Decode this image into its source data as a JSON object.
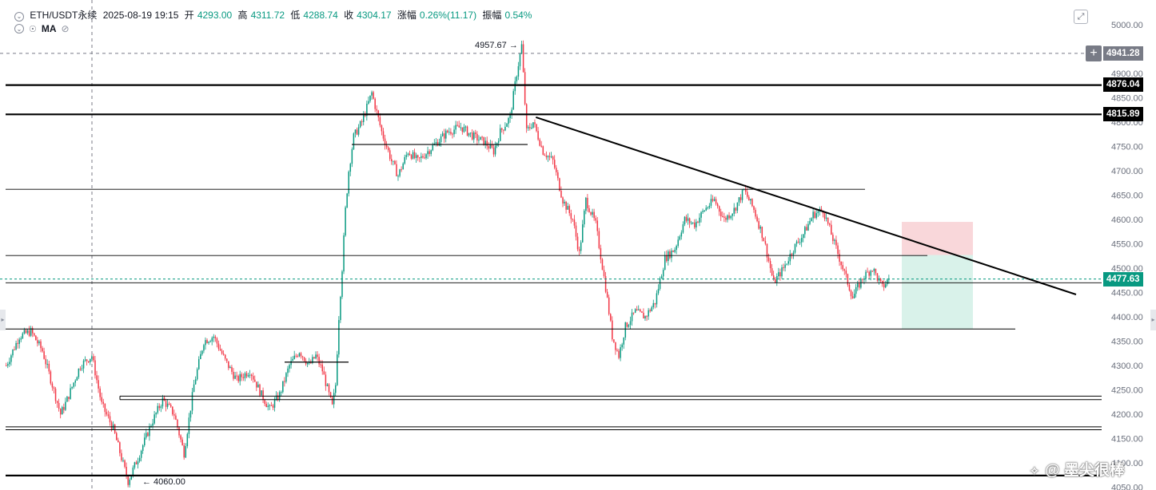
{
  "header": {
    "symbol": "ETH/USDT永续",
    "datetime": "2025-08-19 19:15",
    "open_label": "开",
    "open": "4293.00",
    "high_label": "高",
    "high": "4311.72",
    "low_label": "低",
    "low": "4288.74",
    "close_label": "收",
    "close": "4304.17",
    "change_label": "涨幅",
    "change": "0.26%(11.17)",
    "amp_label": "振幅",
    "amp": "0.54%",
    "indicator": "MA"
  },
  "icons": {
    "collapse": "chevron-down-icon",
    "alert": "bell-icon",
    "visibility": "eye-off-icon",
    "expand": "expand-icon",
    "add": "plus-icon",
    "watermark": "logo-icon"
  },
  "colors": {
    "up": "#089981",
    "down": "#f23645",
    "level": "#000000",
    "current": "#089981",
    "crosshair": "#787b86",
    "stop_zone": "#f9d7da",
    "target_zone": "#d9f2ea"
  },
  "price_badges": {
    "crosshair": "4941.28",
    "level_high": "4876.04",
    "level_mid": "4815.89",
    "current": "4477.63"
  },
  "annotations": {
    "high_label": "4957.67 →",
    "low_label": "← 4060.00"
  },
  "watermark": "墨尖很棒",
  "chart_data": {
    "type": "candlestick",
    "symbol": "ETH/USDT永续",
    "interval_minutes": 15,
    "y_axis": {
      "ticks": [
        "5000.00",
        "4950.00",
        "4900.00",
        "4850.00",
        "4800.00",
        "4750.00",
        "4700.00",
        "4650.00",
        "4600.00",
        "4550.00",
        "4500.00",
        "4450.00",
        "4400.00",
        "4350.00",
        "4300.00",
        "4250.00",
        "4200.00",
        "4150.00",
        "4100.00",
        "4050.00"
      ],
      "ylim": [
        4047,
        5005
      ]
    },
    "x_axis": {
      "n_bars": 440
    },
    "price_path": [
      [
        0,
        4300
      ],
      [
        8,
        4360
      ],
      [
        15,
        4370
      ],
      [
        22,
        4330
      ],
      [
        28,
        4260
      ],
      [
        33,
        4200
      ],
      [
        37,
        4230
      ],
      [
        45,
        4300
      ],
      [
        52,
        4320
      ],
      [
        58,
        4220
      ],
      [
        65,
        4170
      ],
      [
        70,
        4110
      ],
      [
        74,
        4062
      ],
      [
        80,
        4110
      ],
      [
        88,
        4180
      ],
      [
        95,
        4230
      ],
      [
        102,
        4200
      ],
      [
        108,
        4120
      ],
      [
        114,
        4260
      ],
      [
        120,
        4350
      ],
      [
        126,
        4360
      ],
      [
        133,
        4310
      ],
      [
        140,
        4270
      ],
      [
        148,
        4290
      ],
      [
        155,
        4240
      ],
      [
        160,
        4210
      ],
      [
        166,
        4240
      ],
      [
        172,
        4300
      ],
      [
        178,
        4330
      ],
      [
        184,
        4300
      ],
      [
        188,
        4320
      ],
      [
        192,
        4290
      ],
      [
        196,
        4240
      ],
      [
        198,
        4215
      ],
      [
        200,
        4260
      ],
      [
        202,
        4400
      ],
      [
        204,
        4500
      ],
      [
        206,
        4620
      ],
      [
        208,
        4700
      ],
      [
        211,
        4770
      ],
      [
        216,
        4800
      ],
      [
        222,
        4860
      ],
      [
        228,
        4780
      ],
      [
        234,
        4720
      ],
      [
        238,
        4690
      ],
      [
        244,
        4740
      ],
      [
        250,
        4720
      ],
      [
        256,
        4740
      ],
      [
        262,
        4760
      ],
      [
        268,
        4780
      ],
      [
        276,
        4790
      ],
      [
        284,
        4770
      ],
      [
        290,
        4760
      ],
      [
        296,
        4740
      ],
      [
        300,
        4780
      ],
      [
        306,
        4810
      ],
      [
        310,
        4900
      ],
      [
        313,
        4957
      ],
      [
        316,
        4780
      ],
      [
        320,
        4800
      ],
      [
        326,
        4740
      ],
      [
        332,
        4720
      ],
      [
        338,
        4640
      ],
      [
        344,
        4600
      ],
      [
        348,
        4530
      ],
      [
        352,
        4640
      ],
      [
        358,
        4590
      ],
      [
        364,
        4460
      ],
      [
        368,
        4360
      ],
      [
        372,
        4320
      ],
      [
        376,
        4380
      ],
      [
        382,
        4410
      ],
      [
        388,
        4400
      ],
      [
        394,
        4430
      ],
      [
        400,
        4520
      ],
      [
        406,
        4540
      ],
      [
        412,
        4600
      ],
      [
        418,
        4590
      ],
      [
        424,
        4620
      ],
      [
        430,
        4640
      ],
      [
        436,
        4600
      ],
      [
        442,
        4620
      ],
      [
        448,
        4660
      ],
      [
        454,
        4620
      ],
      [
        460,
        4560
      ],
      [
        466,
        4470
      ],
      [
        472,
        4500
      ],
      [
        478,
        4540
      ],
      [
        484,
        4570
      ],
      [
        490,
        4610
      ],
      [
        496,
        4620
      ],
      [
        502,
        4560
      ],
      [
        508,
        4500
      ],
      [
        514,
        4440
      ],
      [
        520,
        4480
      ],
      [
        526,
        4500
      ],
      [
        532,
        4460
      ],
      [
        536,
        4478
      ]
    ],
    "extremes": {
      "high": 4957.67,
      "low": 4060.0,
      "current": 4477.63
    },
    "horizontal_levels": [
      {
        "price": 4941.28,
        "style": "dashed",
        "role": "crosshair"
      },
      {
        "price": 4876.04,
        "style": "bold"
      },
      {
        "price": 4815.89,
        "style": "bold"
      },
      {
        "price": 4754,
        "style": "segment"
      },
      {
        "price": 4662,
        "style": "thin"
      },
      {
        "price": 4526,
        "style": "thin"
      },
      {
        "price": 4477.63,
        "style": "dashed",
        "role": "current"
      },
      {
        "price": 4470,
        "style": "thin"
      },
      {
        "price": 4375,
        "style": "thin"
      },
      {
        "price": 4307,
        "style": "segment"
      },
      {
        "price": 4237,
        "style": "channel"
      },
      {
        "price": 4230,
        "style": "channel"
      },
      {
        "price": 4174,
        "style": "double"
      },
      {
        "price": 4168,
        "style": "double"
      },
      {
        "price": 4074,
        "style": "bold"
      }
    ],
    "trendline": {
      "from": [
        322,
        4810
      ],
      "to": [
        660,
        4440
      ]
    },
    "position_tool": {
      "stop": 4595,
      "entry": 4527,
      "target": 4375
    }
  }
}
